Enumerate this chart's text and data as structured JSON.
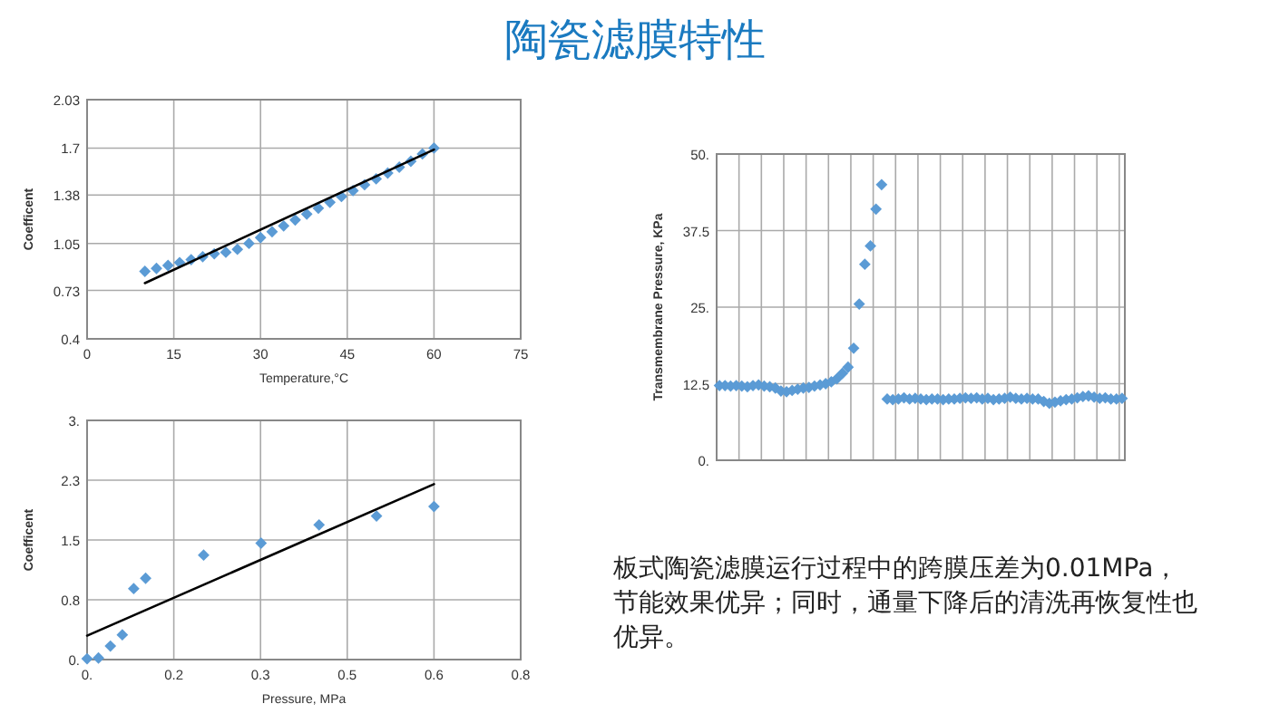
{
  "chart_data": [
    {
      "type": "scatter",
      "xlabel": "Temperature,°C",
      "ylabel": "Coefficent",
      "xlim": [
        0,
        75
      ],
      "xticks": [
        0,
        15,
        30,
        45,
        60,
        75
      ],
      "ylim": [
        0.4,
        2.03
      ],
      "yticks": [
        0.4,
        0.73,
        1.05,
        1.38,
        1.7,
        2.03
      ],
      "grid": true,
      "series": [
        {
          "type": "scatter",
          "marker": "diamond",
          "color": "#5b9bd5",
          "x": [
            10,
            12,
            14,
            16,
            18,
            20,
            22,
            24,
            26,
            28,
            30,
            32,
            34,
            36,
            38,
            40,
            42,
            44,
            46,
            48,
            50,
            52,
            54,
            56,
            58,
            60
          ],
          "values": [
            0.86,
            0.88,
            0.9,
            0.92,
            0.94,
            0.96,
            0.98,
            0.99,
            1.01,
            1.05,
            1.09,
            1.13,
            1.17,
            1.21,
            1.25,
            1.29,
            1.33,
            1.37,
            1.41,
            1.45,
            1.49,
            1.53,
            1.57,
            1.61,
            1.66,
            1.7
          ]
        },
        {
          "type": "line",
          "color": "#000000",
          "x": [
            10,
            60
          ],
          "values": [
            0.78,
            1.69
          ]
        }
      ]
    },
    {
      "type": "scatter",
      "xlabel": "Pressure, MPa",
      "ylabel": "Coefficent",
      "xlim": [
        0,
        0.8
      ],
      "xticks": [
        {
          "value": 0,
          "label": "0."
        },
        {
          "value": 0.16,
          "label": "0.2"
        },
        {
          "value": 0.32,
          "label": "0.3"
        },
        {
          "value": 0.48,
          "label": "0.5"
        },
        {
          "value": 0.64,
          "label": "0.6"
        },
        0.8
      ],
      "ylim": [
        0,
        3
      ],
      "yticks": [
        {
          "value": 0,
          "label": "0."
        },
        {
          "value": 0.75,
          "label": "0.8"
        },
        1.5,
        {
          "value": 2.25,
          "label": "2.3"
        },
        {
          "value": 3,
          "label": "3."
        }
      ],
      "grid": true,
      "series": [
        {
          "type": "scatter",
          "marker": "diamond",
          "color": "#5b9bd5",
          "x": [
            0,
            0.021,
            0.043,
            0.065,
            0.086,
            0.108,
            0.215,
            0.321,
            0.428,
            0.534,
            0.64
          ],
          "values": [
            0.01,
            0.02,
            0.17,
            0.31,
            0.89,
            1.02,
            1.31,
            1.46,
            1.69,
            1.8,
            1.92
          ]
        },
        {
          "type": "line",
          "color": "#000000",
          "x": [
            0,
            0.64
          ],
          "values": [
            0.3,
            2.2
          ]
        }
      ]
    },
    {
      "type": "scatter",
      "ylabel": "Transmembrane Pressure, KPa",
      "ylim": [
        0,
        50
      ],
      "yticks": [
        {
          "value": 0,
          "label": "0."
        },
        12.5,
        {
          "value": 25,
          "label": "25."
        },
        37.5,
        {
          "value": 50,
          "label": "50."
        }
      ],
      "grid": true,
      "tick_labels": "y",
      "categories": [
        null,
        null,
        null,
        null,
        null,
        null,
        null,
        null,
        null,
        null,
        null,
        null,
        null,
        null,
        null,
        null,
        null,
        null,
        null,
        null,
        null,
        null,
        null,
        null,
        null,
        null,
        null,
        null,
        null,
        null,
        null,
        null,
        null,
        null,
        null,
        null,
        null,
        null,
        null,
        null,
        null,
        null,
        null,
        null,
        null,
        null,
        null,
        null,
        null,
        null,
        null,
        null,
        null,
        null,
        null,
        null,
        null,
        null,
        null,
        null,
        null,
        null,
        null,
        null,
        null,
        null,
        null,
        null,
        null,
        null,
        null,
        null,
        null
      ],
      "series": [
        {
          "type": "scatter",
          "marker": "diamond",
          "color": "#5b9bd5",
          "values": [
            12.2,
            12.2,
            12.1,
            12.2,
            12.1,
            12.0,
            12.2,
            12.3,
            12.1,
            12.0,
            11.8,
            11.3,
            11.2,
            11.4,
            11.6,
            11.8,
            11.9,
            12.1,
            12.3,
            12.5,
            12.8,
            13.3,
            14.2,
            15.2,
            18.3,
            25.5,
            32.0,
            35.0,
            41.0,
            45.0,
            10.0,
            9.9,
            10.0,
            10.2,
            10.0,
            10.1,
            10.0,
            9.9,
            10.0,
            10.0,
            9.9,
            10.0,
            10.0,
            10.1,
            10.2,
            10.1,
            10.2,
            10.0,
            10.1,
            9.9,
            10.0,
            10.1,
            10.3,
            10.1,
            10.0,
            10.1,
            10.0,
            10.0,
            9.6,
            9.3,
            9.5,
            9.7,
            9.9,
            10.0,
            10.2,
            10.4,
            10.5,
            10.3,
            10.1,
            10.2,
            10.0,
            10.0,
            10.1
          ]
        }
      ]
    },
    {
      "type": "other",
      "title": "陶瓷滤膜特性",
      "annotations": [
        "板式陶瓷滤膜运行过程中的跨膜压差为0.01MPa，节能效果优异；同时，通量下降后的清洗再恢复性也优异。"
      ]
    }
  ]
}
